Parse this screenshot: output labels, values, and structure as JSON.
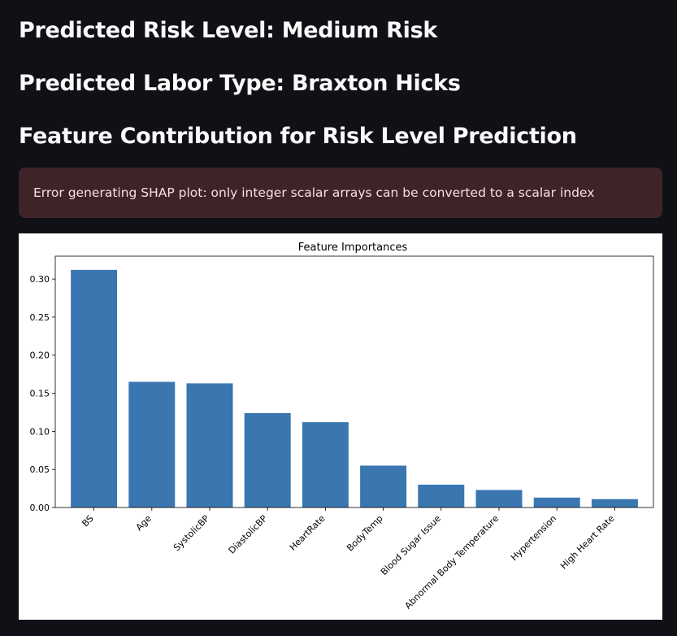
{
  "headings": {
    "risk": "Predicted Risk Level: Medium Risk",
    "labor": "Predicted Labor Type: Braxton Hicks",
    "contribution": "Feature Contribution for Risk Level Prediction"
  },
  "alert": {
    "message": "Error generating SHAP plot: only integer scalar arrays can be converted to a scalar index"
  },
  "chart_data": {
    "type": "bar",
    "title": "Feature Importances",
    "xlabel": "",
    "ylabel": "",
    "categories": [
      "BS",
      "Age",
      "SystolicBP",
      "DiastolicBP",
      "HeartRate",
      "BodyTemp",
      "Blood Sugar Issue",
      "Abnormal Body Temperature",
      "Hypertension",
      "High Heart Rate"
    ],
    "values": [
      0.312,
      0.165,
      0.163,
      0.124,
      0.112,
      0.055,
      0.03,
      0.023,
      0.013,
      0.011
    ],
    "ylim": [
      0,
      0.33
    ],
    "yticks": [
      "0.00",
      "0.05",
      "0.10",
      "0.15",
      "0.20",
      "0.25",
      "0.30"
    ],
    "bar_color": "#3a76b0",
    "grid": false,
    "legend": "none"
  }
}
